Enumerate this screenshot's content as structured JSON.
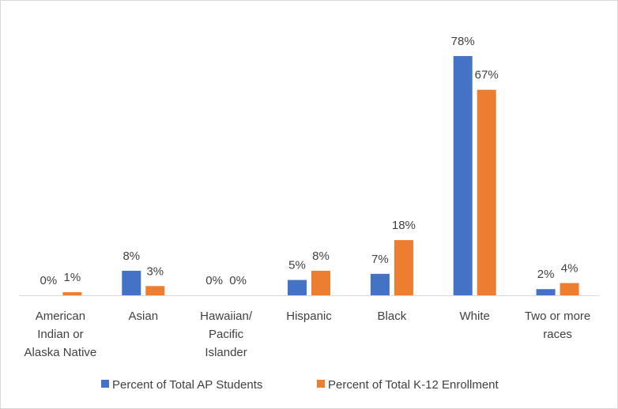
{
  "chart_data": {
    "type": "bar",
    "categories": [
      [
        "American",
        "Indian or",
        "Alaska Native"
      ],
      [
        "Asian"
      ],
      [
        "Hawaiian/",
        "Pacific",
        "Islander"
      ],
      [
        "Hispanic"
      ],
      [
        "Black"
      ],
      [
        "White"
      ],
      [
        "Two or more",
        "races"
      ]
    ],
    "series": [
      {
        "name": "Percent of Total AP Students",
        "color": "#4472c4",
        "values": [
          0,
          8,
          0,
          5,
          7,
          78,
          2
        ],
        "labels": [
          "0%",
          "8%",
          "0%",
          "5%",
          "7%",
          "78%",
          "2%"
        ]
      },
      {
        "name": "Percent of Total K-12 Enrollment",
        "color": "#ed7d31",
        "values": [
          1,
          3,
          0,
          8,
          18,
          67,
          4
        ],
        "labels": [
          "1%",
          "3%",
          "0%",
          "8%",
          "18%",
          "67%",
          "4%"
        ]
      }
    ],
    "ylim": [
      0,
      80
    ],
    "grid": false,
    "legend": "bottom"
  }
}
